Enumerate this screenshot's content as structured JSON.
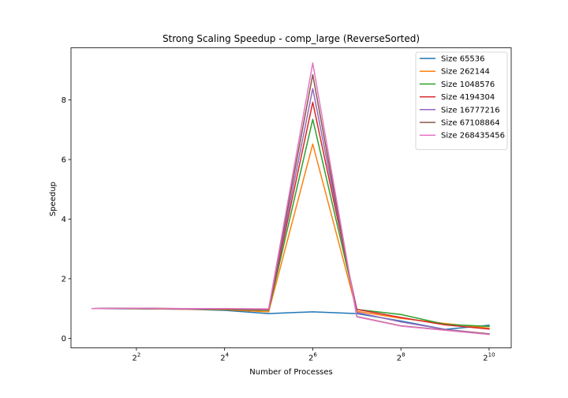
{
  "chart_data": {
    "type": "line",
    "title": "Strong Scaling Speedup - comp_large (ReverseSorted)",
    "xlabel": "Number of Processes",
    "ylabel": "Speedup",
    "x_scale": "log2",
    "x": [
      2,
      4,
      8,
      16,
      32,
      64,
      128,
      256,
      512,
      1024
    ],
    "xlim": [
      1.43,
      1450
    ],
    "ylim": [
      -0.32,
      9.75
    ],
    "x_ticks": [
      {
        "value": 4,
        "base": "2",
        "exp": "2"
      },
      {
        "value": 16,
        "base": "2",
        "exp": "4"
      },
      {
        "value": 64,
        "base": "2",
        "exp": "6"
      },
      {
        "value": 256,
        "base": "2",
        "exp": "8"
      },
      {
        "value": 1024,
        "base": "2",
        "exp": "10"
      }
    ],
    "y_ticks": [
      {
        "value": 0,
        "label": "0"
      },
      {
        "value": 2,
        "label": "2"
      },
      {
        "value": 4,
        "label": "4"
      },
      {
        "value": 6,
        "label": "6"
      },
      {
        "value": 8,
        "label": "8"
      }
    ],
    "grid": false,
    "legend_position": "top-right",
    "series": [
      {
        "name": "Size 65536",
        "color": "#1f77b4",
        "values": [
          1.0,
          0.99,
          0.98,
          0.94,
          0.83,
          0.89,
          0.83,
          0.58,
          0.3,
          0.44
        ]
      },
      {
        "name": "Size 262144",
        "color": "#ff7f0e",
        "values": [
          1.0,
          1.0,
          0.98,
          0.96,
          0.89,
          6.52,
          0.91,
          0.67,
          0.5,
          0.34
        ]
      },
      {
        "name": "Size 1048576",
        "color": "#2ca02c",
        "values": [
          1.0,
          1.01,
          0.99,
          0.97,
          0.94,
          7.35,
          0.97,
          0.8,
          0.47,
          0.4
        ]
      },
      {
        "name": "Size 4194304",
        "color": "#d62728",
        "values": [
          1.0,
          1.01,
          0.99,
          0.98,
          0.96,
          7.92,
          0.97,
          0.7,
          0.45,
          0.31
        ]
      },
      {
        "name": "Size 16777216",
        "color": "#9467bd",
        "values": [
          1.0,
          1.01,
          0.99,
          0.99,
          0.97,
          8.38,
          0.87,
          0.55,
          0.3,
          0.15
        ]
      },
      {
        "name": "Size 67108864",
        "color": "#8c564b",
        "values": [
          1.0,
          1.01,
          1.0,
          0.99,
          0.98,
          8.85,
          0.73,
          0.42,
          0.28,
          0.15
        ]
      },
      {
        "name": "Size 268435456",
        "color": "#e377c2",
        "values": [
          1.0,
          1.01,
          1.0,
          1.0,
          0.99,
          9.24,
          0.72,
          0.41,
          0.27,
          0.13
        ]
      }
    ]
  }
}
